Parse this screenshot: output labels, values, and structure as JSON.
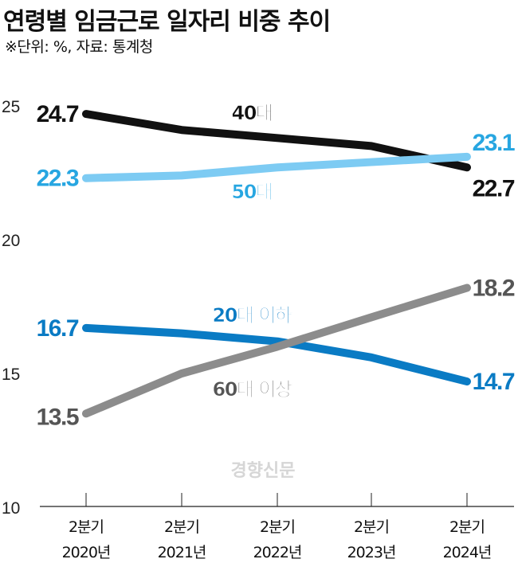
{
  "title": "연령별 임금근로 일자리 비중 추이",
  "subtitle": "※단위: %, 자료: 통계청",
  "watermark": "경향신문",
  "chart_data": {
    "type": "line",
    "title": "연령별 임금근로 일자리 비중 추이",
    "subtitle": "※단위: %, 자료: 통계청",
    "categories": [
      [
        "2분기",
        "2020년"
      ],
      [
        "2분기",
        "2021년"
      ],
      [
        "2분기",
        "2022년"
      ],
      [
        "2분기",
        "2023년"
      ],
      [
        "2분기",
        "2024년"
      ]
    ],
    "ylim": [
      10,
      25
    ],
    "yticks": [
      "10",
      "15",
      "20",
      "25"
    ],
    "grid": false,
    "legend": "inline labels",
    "series": [
      {
        "name": "40대",
        "color": "#111111",
        "values": [
          24.7,
          24.1,
          23.8,
          23.5,
          22.7
        ],
        "start_label": "24.7",
        "end_label": "22.7"
      },
      {
        "name": "50대",
        "color": "#7DCBF3",
        "label_color": "#27A6E1",
        "values": [
          22.3,
          22.4,
          22.7,
          22.9,
          23.1
        ],
        "start_label": "22.3",
        "end_label": "23.1"
      },
      {
        "name": "20대 이하",
        "color": "#0A7BC4",
        "values": [
          16.7,
          16.5,
          16.2,
          15.6,
          14.7
        ],
        "start_label": "16.7",
        "end_label": "14.7"
      },
      {
        "name": "60대 이상",
        "color": "#8C8C8C",
        "label_color": "#555555",
        "values": [
          13.5,
          15.0,
          16.0,
          17.1,
          18.2
        ],
        "start_label": "13.5",
        "end_label": "18.2"
      }
    ]
  }
}
